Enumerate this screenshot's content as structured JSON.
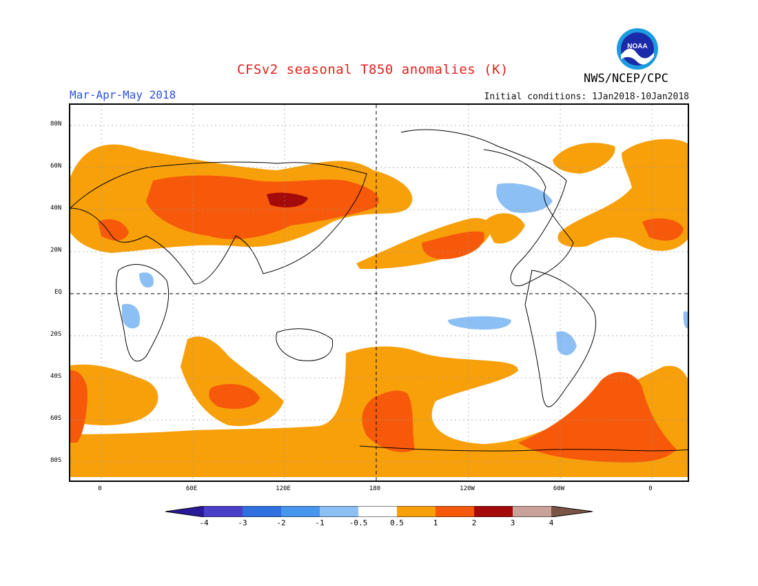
{
  "title": "CFSv2 seasonal T850 anomalies (K)",
  "period": "Mar-Apr-May 2018",
  "initial_conditions": "Initial conditions: 1Jan2018-10Jan2018",
  "agency": "NWS/NCEP/CPC",
  "logo_text": "NOAA",
  "colors": {
    "neg_4": "#2a1a99",
    "neg_3": "#4b3fc9",
    "neg_2": "#2f6fe0",
    "neg_1": "#4796ee",
    "neg_05": "#8cc0f5",
    "zero": "#ffffff",
    "pos_05": "#f7a00a",
    "pos_1": "#f7590a",
    "pos_2": "#e2200a",
    "pos_3": "#a40a0a",
    "pos_4": "#c9a29a",
    "pos_max": "#7a5545"
  },
  "lat_ticks": [
    "80N",
    "60N",
    "40N",
    "20N",
    "EQ",
    "20S",
    "40S",
    "60S",
    "80S"
  ],
  "lon_ticks": [
    "0",
    "60E",
    "120E",
    "180",
    "120W",
    "60W",
    "0"
  ],
  "colorbar": {
    "labels": [
      "-4",
      "-3",
      "-2",
      "-1",
      "-0.5",
      "0.5",
      "1",
      "2",
      "3",
      "4"
    ]
  }
}
